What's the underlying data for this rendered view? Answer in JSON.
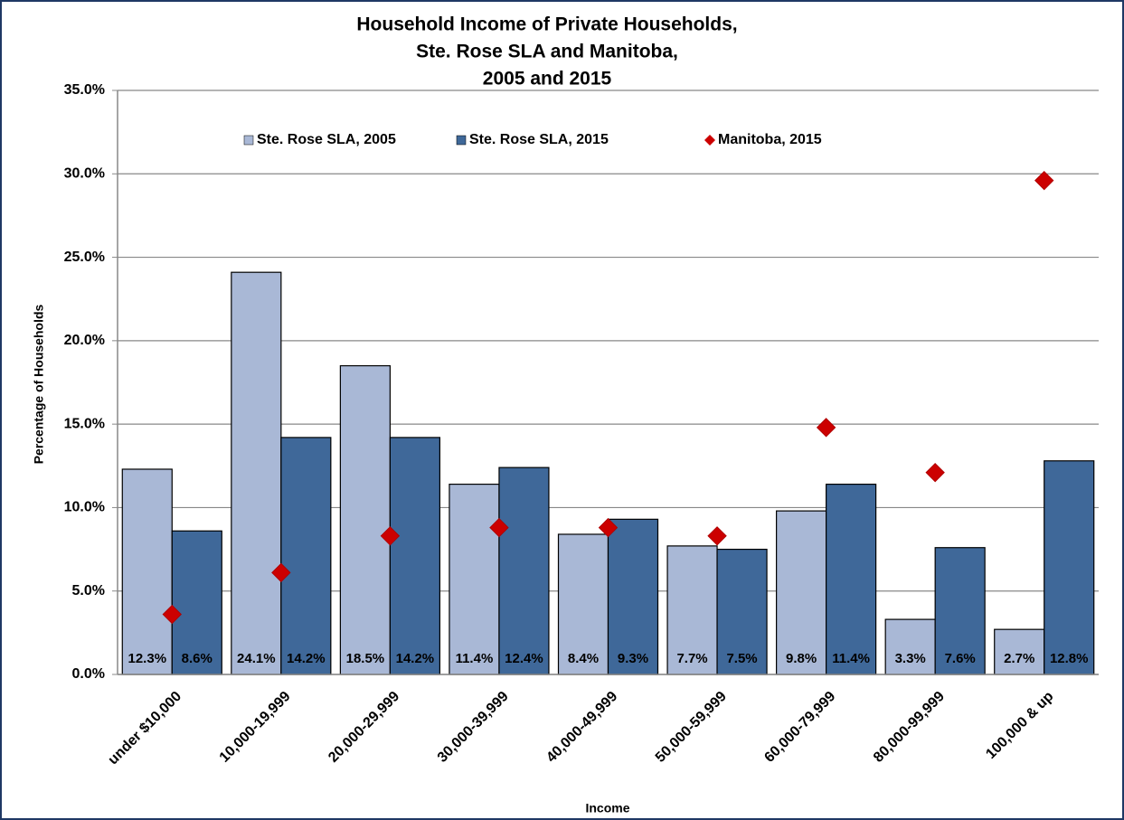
{
  "chart_data": {
    "type": "bar",
    "title": [
      "Household Income of Private Households,",
      "Ste. Rose SLA and Manitoba,",
      "2005 and 2015"
    ],
    "x_label": "Income",
    "y_label": "Percentage of Households",
    "categories": [
      "under $10,000",
      "10,000-19,999",
      "20,000-29,999",
      "30,000-39,999",
      "40,000-49,999",
      "50,000-59,999",
      "60,000-79,999",
      "80,000-99,999",
      "100,000 & up"
    ],
    "series": [
      {
        "name": "Ste. Rose SLA, 2005",
        "type": "bar",
        "color": "#a9b8d6",
        "values": [
          12.3,
          24.1,
          18.5,
          11.4,
          8.4,
          7.7,
          9.8,
          3.3,
          2.7
        ],
        "value_labels": [
          "12.3%",
          "24.1%",
          "18.5%",
          "11.4%",
          "8.4%",
          "7.7%",
          "9.8%",
          "3.3%",
          "2.7%"
        ]
      },
      {
        "name": "Ste. Rose  SLA, 2015",
        "type": "bar",
        "color": "#3f6899",
        "values": [
          8.6,
          14.2,
          14.2,
          12.4,
          9.3,
          7.5,
          11.4,
          7.6,
          12.8
        ],
        "value_labels": [
          "8.6%",
          "14.2%",
          "14.2%",
          "12.4%",
          "9.3%",
          "7.5%",
          "11.4%",
          "7.6%",
          "12.8%"
        ]
      },
      {
        "name": "Manitoba, 2015",
        "type": "scatter",
        "marker": "diamond",
        "color": "#cc0000",
        "values": [
          3.6,
          6.1,
          8.3,
          8.8,
          8.8,
          8.3,
          14.8,
          12.1,
          29.6
        ]
      }
    ],
    "ylim": [
      0,
      35
    ],
    "yticks": [
      {
        "value": 0,
        "label": "0.0%"
      },
      {
        "value": 5,
        "label": "5.0%"
      },
      {
        "value": 10,
        "label": "10.0%"
      },
      {
        "value": 15,
        "label": "15.0%"
      },
      {
        "value": 20,
        "label": "20.0%"
      },
      {
        "value": 25,
        "label": "25.0%"
      },
      {
        "value": 30,
        "label": "30.0%"
      },
      {
        "value": 35,
        "label": "35.0%"
      }
    ],
    "grid": true,
    "legend": "top"
  }
}
